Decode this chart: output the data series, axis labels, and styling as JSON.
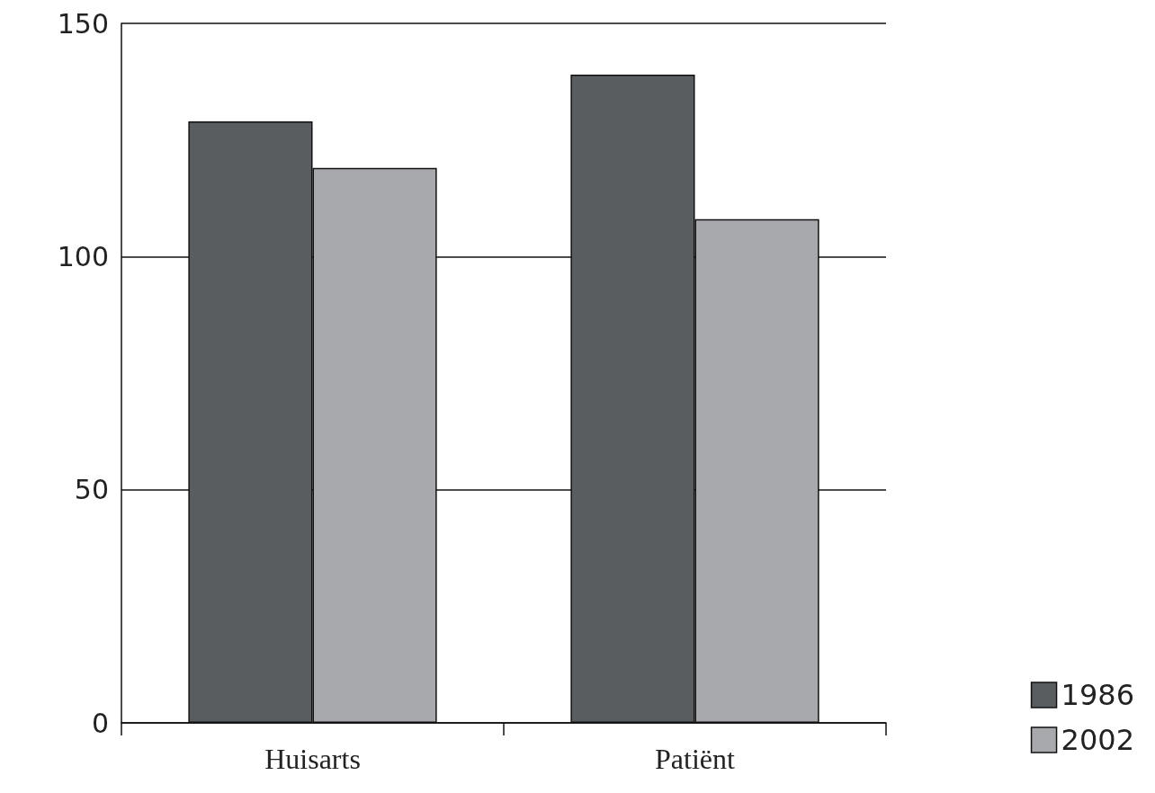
{
  "chart_data": {
    "type": "bar",
    "categories": [
      "Huisarts",
      "Patiënt"
    ],
    "series": [
      {
        "name": "1986",
        "color": "#5a5d60",
        "values": [
          129,
          139
        ]
      },
      {
        "name": "2002",
        "color": "#a7a9ac",
        "values": [
          119,
          108
        ]
      }
    ],
    "ylim": [
      0,
      150
    ],
    "yticks": [
      0,
      50,
      100,
      150
    ],
    "grid": "y",
    "legend": "bottom right"
  }
}
